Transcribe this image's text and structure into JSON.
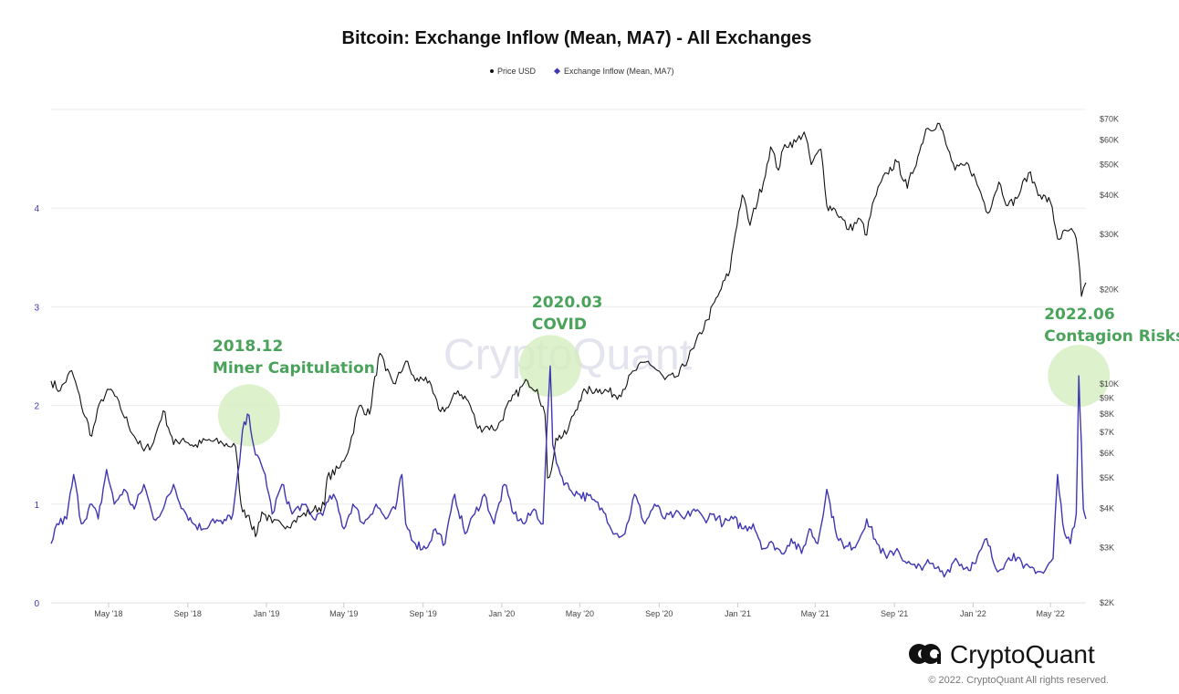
{
  "chart_data": {
    "type": "line",
    "title": "Bitcoin: Exchange Inflow (Mean, MA7) - All Exchanges",
    "legend": {
      "placement": "top-center",
      "entries": [
        "Price USD",
        "Exchange Inflow (Mean, MA7)"
      ]
    },
    "x_ticks": [
      "May '18",
      "Sep '18",
      "Jan '19",
      "May '19",
      "Sep '19",
      "Jan '20",
      "May '20",
      "Sep '20",
      "Jan '21",
      "May '21",
      "Sep '21",
      "Jan '22",
      "May '22"
    ],
    "x_range": [
      "2018-02-01",
      "2022-06-25"
    ],
    "y_left": {
      "ticks": [
        "0",
        "1",
        "2",
        "3",
        "4"
      ],
      "range": [
        0,
        5
      ]
    },
    "y_right": {
      "scale": "log",
      "ticks": [
        "$2K",
        "$3K",
        "$4K",
        "$5K",
        "$6K",
        "$7K",
        "$8K",
        "$9K",
        "$10K",
        "$20K",
        "$30K",
        "$40K",
        "$50K",
        "$60K",
        "$70K"
      ],
      "tick_values": [
        2000,
        3000,
        4000,
        5000,
        6000,
        7000,
        8000,
        9000,
        10000,
        20000,
        30000,
        40000,
        50000,
        60000,
        70000
      ],
      "range": [
        2000,
        75000
      ]
    },
    "grid": true,
    "series": [
      {
        "name": "Price USD",
        "axis": "right",
        "color": "#111111",
        "points": [
          [
            "2018-02-01",
            10200
          ],
          [
            "2018-02-15",
            9500
          ],
          [
            "2018-03-05",
            11000
          ],
          [
            "2018-03-20",
            8500
          ],
          [
            "2018-04-05",
            6800
          ],
          [
            "2018-04-20",
            8900
          ],
          [
            "2018-05-05",
            9600
          ],
          [
            "2018-05-20",
            8300
          ],
          [
            "2018-06-10",
            6800
          ],
          [
            "2018-06-25",
            6100
          ],
          [
            "2018-07-10",
            6500
          ],
          [
            "2018-07-25",
            8200
          ],
          [
            "2018-08-10",
            6400
          ],
          [
            "2018-08-25",
            6700
          ],
          [
            "2018-09-10",
            6300
          ],
          [
            "2018-10-01",
            6600
          ],
          [
            "2018-10-25",
            6450
          ],
          [
            "2018-11-14",
            6300
          ],
          [
            "2018-11-20",
            4600
          ],
          [
            "2018-11-25",
            3900
          ],
          [
            "2018-12-05",
            3800
          ],
          [
            "2018-12-15",
            3250
          ],
          [
            "2018-12-25",
            3900
          ],
          [
            "2019-01-10",
            3600
          ],
          [
            "2019-01-25",
            3550
          ],
          [
            "2019-02-10",
            3600
          ],
          [
            "2019-02-25",
            3800
          ],
          [
            "2019-03-15",
            3950
          ],
          [
            "2019-04-01",
            4100
          ],
          [
            "2019-04-05",
            5000
          ],
          [
            "2019-04-25",
            5400
          ],
          [
            "2019-05-10",
            6300
          ],
          [
            "2019-05-25",
            8500
          ],
          [
            "2019-06-10",
            8000
          ],
          [
            "2019-06-26",
            12500
          ],
          [
            "2019-07-05",
            11000
          ],
          [
            "2019-07-20",
            10000
          ],
          [
            "2019-08-05",
            11800
          ],
          [
            "2019-08-20",
            10200
          ],
          [
            "2019-09-05",
            10500
          ],
          [
            "2019-09-25",
            8300
          ],
          [
            "2019-10-10",
            8400
          ],
          [
            "2019-10-25",
            9500
          ],
          [
            "2019-11-10",
            8800
          ],
          [
            "2019-11-25",
            7200
          ],
          [
            "2019-12-10",
            7300
          ],
          [
            "2019-12-25",
            7200
          ],
          [
            "2020-01-15",
            8800
          ],
          [
            "2020-02-10",
            10200
          ],
          [
            "2020-02-25",
            9600
          ],
          [
            "2020-03-08",
            8000
          ],
          [
            "2020-03-12",
            5000
          ],
          [
            "2020-03-18",
            5300
          ],
          [
            "2020-03-25",
            6700
          ],
          [
            "2020-04-10",
            6900
          ],
          [
            "2020-04-30",
            8800
          ],
          [
            "2020-05-10",
            9500
          ],
          [
            "2020-06-01",
            9600
          ],
          [
            "2020-07-01",
            9200
          ],
          [
            "2020-07-25",
            11000
          ],
          [
            "2020-08-15",
            11800
          ],
          [
            "2020-09-10",
            10300
          ],
          [
            "2020-10-01",
            10600
          ],
          [
            "2020-10-25",
            13000
          ],
          [
            "2020-11-15",
            16000
          ],
          [
            "2020-12-01",
            19000
          ],
          [
            "2020-12-20",
            23000
          ],
          [
            "2021-01-08",
            40000
          ],
          [
            "2021-01-20",
            32000
          ],
          [
            "2021-02-10",
            44000
          ],
          [
            "2021-02-21",
            57000
          ],
          [
            "2021-03-05",
            48000
          ],
          [
            "2021-03-15",
            58000
          ],
          [
            "2021-04-01",
            59000
          ],
          [
            "2021-04-14",
            63500
          ],
          [
            "2021-04-25",
            50000
          ],
          [
            "2021-05-10",
            56000
          ],
          [
            "2021-05-19",
            37000
          ],
          [
            "2021-06-01",
            36000
          ],
          [
            "2021-06-22",
            31000
          ],
          [
            "2021-07-10",
            33500
          ],
          [
            "2021-07-20",
            29800
          ],
          [
            "2021-08-01",
            39000
          ],
          [
            "2021-08-20",
            47000
          ],
          [
            "2021-09-05",
            51000
          ],
          [
            "2021-09-21",
            42000
          ],
          [
            "2021-10-10",
            55000
          ],
          [
            "2021-10-20",
            65000
          ],
          [
            "2021-11-10",
            67500
          ],
          [
            "2021-11-20",
            58000
          ],
          [
            "2021-12-04",
            48000
          ],
          [
            "2021-12-25",
            50000
          ],
          [
            "2022-01-10",
            42000
          ],
          [
            "2022-01-24",
            35000
          ],
          [
            "2022-02-10",
            44000
          ],
          [
            "2022-02-24",
            37000
          ],
          [
            "2022-03-10",
            39000
          ],
          [
            "2022-03-28",
            47000
          ],
          [
            "2022-04-15",
            40000
          ],
          [
            "2022-05-01",
            38000
          ],
          [
            "2022-05-12",
            29000
          ],
          [
            "2022-05-31",
            31000
          ],
          [
            "2022-06-10",
            29000
          ],
          [
            "2022-06-18",
            19000
          ],
          [
            "2022-06-25",
            21000
          ]
        ]
      },
      {
        "name": "Exchange Inflow (Mean, MA7)",
        "axis": "left",
        "color": "#3f36b3",
        "points": [
          [
            "2018-02-01",
            0.6
          ],
          [
            "2018-02-10",
            0.8
          ],
          [
            "2018-02-25",
            0.85
          ],
          [
            "2018-03-08",
            1.3
          ],
          [
            "2018-03-20",
            0.8
          ],
          [
            "2018-04-05",
            1.0
          ],
          [
            "2018-04-15",
            0.85
          ],
          [
            "2018-04-28",
            1.35
          ],
          [
            "2018-05-10",
            1.0
          ],
          [
            "2018-05-25",
            1.15
          ],
          [
            "2018-06-10",
            0.95
          ],
          [
            "2018-06-25",
            1.2
          ],
          [
            "2018-07-10",
            0.85
          ],
          [
            "2018-07-25",
            0.95
          ],
          [
            "2018-08-10",
            1.2
          ],
          [
            "2018-08-25",
            0.95
          ],
          [
            "2018-09-10",
            0.8
          ],
          [
            "2018-09-25",
            0.75
          ],
          [
            "2018-10-10",
            0.85
          ],
          [
            "2018-10-25",
            0.8
          ],
          [
            "2018-11-10",
            0.9
          ],
          [
            "2018-11-20",
            1.4
          ],
          [
            "2018-11-25",
            1.75
          ],
          [
            "2018-12-05",
            1.9
          ],
          [
            "2018-12-15",
            1.5
          ],
          [
            "2018-12-30",
            1.3
          ],
          [
            "2019-01-10",
            0.9
          ],
          [
            "2019-01-25",
            1.2
          ],
          [
            "2019-02-10",
            0.9
          ],
          [
            "2019-02-25",
            1.0
          ],
          [
            "2019-03-15",
            0.85
          ],
          [
            "2019-04-01",
            0.95
          ],
          [
            "2019-04-15",
            1.1
          ],
          [
            "2019-05-01",
            0.75
          ],
          [
            "2019-05-15",
            1.0
          ],
          [
            "2019-06-01",
            0.8
          ],
          [
            "2019-06-20",
            1.0
          ],
          [
            "2019-07-05",
            0.85
          ],
          [
            "2019-07-20",
            0.95
          ],
          [
            "2019-07-30",
            1.3
          ],
          [
            "2019-08-05",
            0.8
          ],
          [
            "2019-08-20",
            0.6
          ],
          [
            "2019-09-05",
            0.55
          ],
          [
            "2019-09-20",
            0.75
          ],
          [
            "2019-10-05",
            0.6
          ],
          [
            "2019-10-20",
            1.1
          ],
          [
            "2019-11-05",
            0.7
          ],
          [
            "2019-11-20",
            0.9
          ],
          [
            "2019-12-05",
            1.1
          ],
          [
            "2019-12-20",
            0.8
          ],
          [
            "2020-01-05",
            1.2
          ],
          [
            "2020-01-20",
            0.9
          ],
          [
            "2020-02-05",
            0.8
          ],
          [
            "2020-02-20",
            0.95
          ],
          [
            "2020-03-05",
            0.8
          ],
          [
            "2020-03-12",
            1.9
          ],
          [
            "2020-03-16",
            2.4
          ],
          [
            "2020-03-20",
            1.6
          ],
          [
            "2020-04-01",
            1.3
          ],
          [
            "2020-04-15",
            1.15
          ],
          [
            "2020-05-01",
            1.1
          ],
          [
            "2020-05-20",
            1.05
          ],
          [
            "2020-06-10",
            0.9
          ],
          [
            "2020-06-25",
            0.7
          ],
          [
            "2020-07-10",
            0.7
          ],
          [
            "2020-07-25",
            1.1
          ],
          [
            "2020-08-10",
            0.8
          ],
          [
            "2020-08-25",
            1.0
          ],
          [
            "2020-09-10",
            0.85
          ],
          [
            "2020-09-25",
            0.9
          ],
          [
            "2020-10-10",
            0.85
          ],
          [
            "2020-10-25",
            0.95
          ],
          [
            "2020-11-10",
            0.85
          ],
          [
            "2020-11-25",
            0.9
          ],
          [
            "2020-12-10",
            0.8
          ],
          [
            "2020-12-25",
            0.85
          ],
          [
            "2021-01-10",
            0.75
          ],
          [
            "2021-01-25",
            0.8
          ],
          [
            "2021-02-10",
            0.55
          ],
          [
            "2021-02-25",
            0.6
          ],
          [
            "2021-03-10",
            0.5
          ],
          [
            "2021-03-25",
            0.65
          ],
          [
            "2021-04-10",
            0.5
          ],
          [
            "2021-04-22",
            0.75
          ],
          [
            "2021-05-05",
            0.6
          ],
          [
            "2021-05-19",
            1.15
          ],
          [
            "2021-06-01",
            0.75
          ],
          [
            "2021-06-15",
            0.55
          ],
          [
            "2021-07-05",
            0.6
          ],
          [
            "2021-07-20",
            0.85
          ],
          [
            "2021-08-05",
            0.6
          ],
          [
            "2021-08-20",
            0.45
          ],
          [
            "2021-09-05",
            0.55
          ],
          [
            "2021-09-20",
            0.4
          ],
          [
            "2021-10-05",
            0.35
          ],
          [
            "2021-10-20",
            0.4
          ],
          [
            "2021-11-05",
            0.35
          ],
          [
            "2021-11-20",
            0.3
          ],
          [
            "2021-12-05",
            0.45
          ],
          [
            "2021-12-20",
            0.35
          ],
          [
            "2022-01-05",
            0.4
          ],
          [
            "2022-01-22",
            0.65
          ],
          [
            "2022-02-05",
            0.35
          ],
          [
            "2022-02-20",
            0.4
          ],
          [
            "2022-03-05",
            0.5
          ],
          [
            "2022-03-20",
            0.35
          ],
          [
            "2022-04-05",
            0.35
          ],
          [
            "2022-04-20",
            0.3
          ],
          [
            "2022-05-05",
            0.45
          ],
          [
            "2022-05-12",
            1.3
          ],
          [
            "2022-05-20",
            0.8
          ],
          [
            "2022-06-01",
            0.6
          ],
          [
            "2022-06-10",
            0.9
          ],
          [
            "2022-06-14",
            2.3
          ],
          [
            "2022-06-18",
            1.6
          ],
          [
            "2022-06-21",
            0.95
          ],
          [
            "2022-06-25",
            0.85
          ]
        ]
      }
    ],
    "annotations": [
      {
        "lines": [
          "2018.12",
          "Miner Capitulation"
        ],
        "date": "2018-12-05",
        "value": 1.9
      },
      {
        "lines": [
          "2020.03",
          "COVID"
        ],
        "date": "2020-03-16",
        "value": 2.4
      },
      {
        "lines": [
          "2022.06",
          "Contagion Risks"
        ],
        "date": "2022-06-14",
        "value": 2.3
      }
    ]
  },
  "watermark": "CryptoQuant",
  "footer": {
    "brand": "CryptoQuant",
    "copyright": "© 2022. CryptoQuant All rights reserved."
  },
  "colors": {
    "inflow": "#3f36b3",
    "price": "#111111",
    "highlight": "#d6eec0",
    "annotation": "#4aa35a"
  }
}
